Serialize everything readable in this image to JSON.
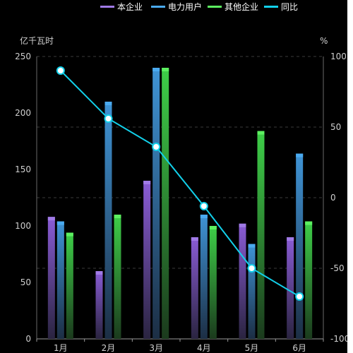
{
  "chart_data": {
    "type": "bar",
    "categories": [
      "1月",
      "2月",
      "3月",
      "4月",
      "5月",
      "6月"
    ],
    "y_left_label": "亿千瓦时",
    "y_right_label": "%",
    "y_left_ticks": [
      0,
      50,
      100,
      150,
      200,
      250
    ],
    "y_right_ticks": [
      -100,
      -50,
      0,
      50,
      100
    ],
    "ylim_left": [
      0,
      250
    ],
    "ylim_right": [
      -100,
      100
    ],
    "grid": "dashed horizontal",
    "legend_placement": "top-center",
    "series": [
      {
        "name": "本企业",
        "kind": "bar",
        "color_top": "#8a5cd6",
        "color_bottom": "#2a2440",
        "cap": "#a07ae6",
        "values": [
          108,
          60,
          140,
          90,
          102,
          90
        ]
      },
      {
        "name": "电力用户",
        "kind": "bar",
        "color_top": "#3f94d6",
        "color_bottom": "#1c2e44",
        "cap": "#4aaaf0",
        "values": [
          104,
          210,
          240,
          110,
          84,
          164
        ]
      },
      {
        "name": "其他企业",
        "kind": "bar",
        "color_top": "#3ecf48",
        "color_bottom": "#1b3a1d",
        "cap": "#5cf060",
        "values": [
          94,
          110,
          240,
          100,
          null,
          104
        ]
      },
      {
        "name": "同比",
        "kind": "line",
        "axis": "right",
        "color": "#12d0ea",
        "values": [
          90,
          56,
          36,
          -6,
          -50,
          -70
        ]
      }
    ]
  }
}
